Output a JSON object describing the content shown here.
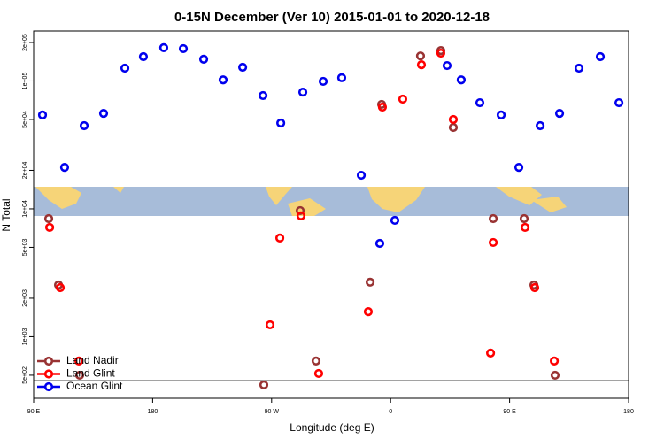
{
  "chart_data": {
    "type": "scatter",
    "title": "0-15N December (Ver 10)   2015-01-01 to 2020-12-18",
    "x_label": "Longitude (deg E)",
    "y_label": "N Total",
    "log_y": true,
    "legend": "bottom-left",
    "xlim": [
      90,
      540
    ],
    "xticks": [
      {
        "value": 90,
        "label": "90 E"
      },
      180,
      {
        "value": 270,
        "label": "90 W"
      },
      {
        "value": 360,
        "label": "0"
      },
      {
        "value": 450,
        "label": "90 E"
      },
      {
        "value": 540,
        "label": "180"
      }
    ],
    "ylim": [
      330,
      246000
    ],
    "yticks": [
      {
        "value": 500,
        "label": "5e+02"
      },
      {
        "value": 1000,
        "label": "1e+03"
      },
      {
        "value": 2000,
        "label": "2e+03"
      },
      {
        "value": 5000,
        "label": "5e+03"
      },
      {
        "value": 10000,
        "label": "1e+04"
      },
      {
        "value": 20000,
        "label": "2e+04"
      },
      {
        "value": 50000,
        "label": "5e+04"
      },
      {
        "value": 100000,
        "label": "1e+05"
      },
      {
        "value": 200000,
        "label": "2e+05"
      }
    ],
    "series": [
      {
        "name": "Land Nadir",
        "color": "#993333",
        "x": [
          101.4,
          108.8,
          124.8,
          264.1,
          291.6,
          303.6,
          344.5,
          353.2,
          382.6,
          398.0,
          407.4,
          437.6,
          461.0,
          468.4,
          484.4
        ],
        "values": [
          8390,
          2540,
          500,
          420,
          9690,
          646,
          2670,
          65600,
          157000,
          173000,
          43300,
          8390,
          8390,
          2540,
          500
        ]
      },
      {
        "name": "Land Glint",
        "color": "#ff0000",
        "x": [
          102.1,
          110.1,
          124.2,
          268.8,
          276.2,
          292.2,
          305.6,
          343.1,
          353.8,
          369.2,
          383.3,
          398.0,
          407.4,
          437.6,
          435.6,
          461.7,
          469.0,
          483.8
        ],
        "values": [
          7160,
          2420,
          646,
          1240,
          5920,
          8810,
          516,
          1570,
          62500,
          72100,
          134000,
          165000,
          50000,
          5460,
          745,
          7160,
          2420,
          646
        ]
      },
      {
        "name": "Ocean Glint",
        "color": "#0000ee",
        "x": [
          96.7,
          113.4,
          128.2,
          142.9,
          159.0,
          173.0,
          188.4,
          203.2,
          218.6,
          233.3,
          248.1,
          263.5,
          276.9,
          293.6,
          309.0,
          323.0,
          337.8,
          351.8,
          363.2,
          402.7,
          413.4,
          427.5,
          443.6,
          457.0,
          473.1,
          487.8,
          502.5,
          518.6,
          532.7
        ],
        "values": [
          54200,
          21100,
          44700,
          55800,
          126000,
          155000,
          182000,
          179000,
          148000,
          102000,
          128000,
          76900,
          46900,
          81800,
          99300,
          106000,
          18300,
          5370,
          8130,
          132000,
          102000,
          67600,
          54200,
          21100,
          44700,
          55800,
          126000,
          155000,
          67600
        ]
      }
    ]
  }
}
